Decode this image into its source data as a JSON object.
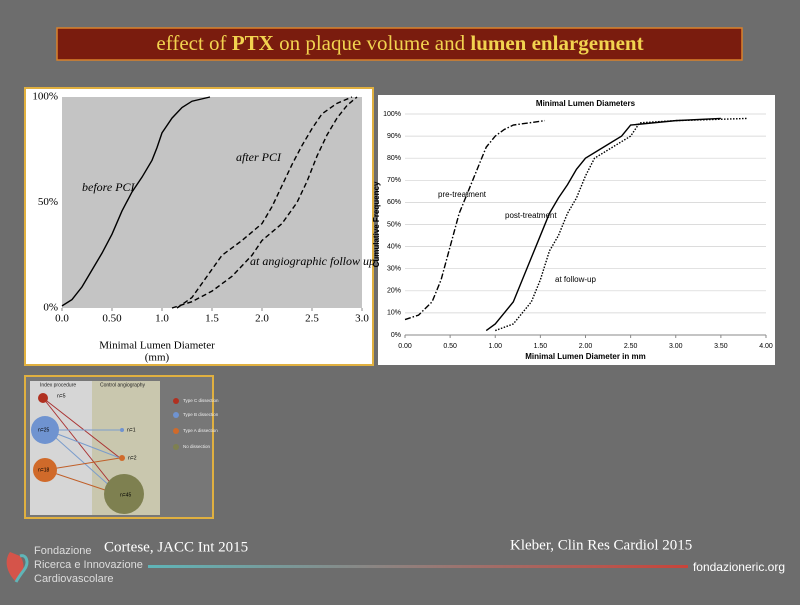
{
  "slide": {
    "title_parts": [
      "effect of ",
      "PTX",
      " on plaque volume and ",
      "lumen enlargement"
    ]
  },
  "chart_data": [
    {
      "type": "line",
      "xlim": [
        0,
        3
      ],
      "ylim": [
        0,
        100
      ],
      "xticks": [
        {
          "value": 0,
          "label": "0.0"
        },
        {
          "value": 0.5,
          "label": "0.50"
        },
        {
          "value": 1,
          "label": "1.0"
        },
        1.5,
        {
          "value": 2,
          "label": "2.0"
        },
        2.5,
        {
          "value": 3,
          "label": "3.0"
        }
      ],
      "yticks": [
        {
          "value": 0,
          "label": "0%"
        },
        {
          "value": 50,
          "label": "50%"
        },
        {
          "value": 100,
          "label": "100%"
        }
      ],
      "xlabel": [
        "Minimal Lumen Diameter",
        "(mm)"
      ],
      "grid": false,
      "series": [
        {
          "name": "before PCI",
          "color": "#000000",
          "dash": "solid",
          "x": [
            0.0,
            0.1,
            0.2,
            0.3,
            0.4,
            0.5,
            0.6,
            0.7,
            0.8,
            0.9,
            0.95,
            1.0,
            1.1,
            1.2,
            1.3,
            1.48
          ],
          "values": [
            1,
            4,
            10,
            18,
            26,
            35,
            46,
            55,
            62,
            70,
            76,
            83,
            90,
            95,
            98,
            100
          ]
        },
        {
          "name": "after PCI",
          "color": "#000000",
          "dash": "dashed",
          "x": [
            1.15,
            1.3,
            1.45,
            1.6,
            1.8,
            2.0,
            2.1,
            2.2,
            2.3,
            2.4,
            2.5,
            2.6,
            2.75,
            2.9
          ],
          "values": [
            0,
            5,
            15,
            25,
            32,
            40,
            48,
            58,
            68,
            77,
            85,
            92,
            97,
            100
          ]
        },
        {
          "name": "at angiographic follow up",
          "color": "#000000",
          "dash": "dashed",
          "x": [
            1.1,
            1.3,
            1.5,
            1.7,
            1.9,
            2.0,
            2.2,
            2.35,
            2.45,
            2.55,
            2.65,
            2.75,
            2.85,
            2.95
          ],
          "values": [
            0,
            3,
            8,
            15,
            25,
            32,
            40,
            50,
            60,
            72,
            82,
            90,
            96,
            100
          ]
        }
      ]
    },
    {
      "type": "line",
      "title": "Minimal Lumen Diameters",
      "xlim": [
        0,
        4
      ],
      "ylim": [
        0,
        100
      ],
      "xticks": [
        {
          "value": 0,
          "label": "0.00"
        },
        {
          "value": 0.5,
          "label": "0.50"
        },
        {
          "value": 1,
          "label": "1.00"
        },
        {
          "value": 1.5,
          "label": "1.50"
        },
        {
          "value": 2,
          "label": "2.00"
        },
        {
          "value": 2.5,
          "label": "2.50"
        },
        {
          "value": 3,
          "label": "3.00"
        },
        {
          "value": 3.5,
          "label": "3.50"
        },
        {
          "value": 4,
          "label": "4.00"
        }
      ],
      "yticks": [
        {
          "value": 0,
          "label": "0%"
        },
        {
          "value": 10,
          "label": "10%"
        },
        {
          "value": 20,
          "label": "20%"
        },
        {
          "value": 30,
          "label": "30%"
        },
        {
          "value": 40,
          "label": "40%"
        },
        {
          "value": 50,
          "label": "50%"
        },
        {
          "value": 60,
          "label": "60%"
        },
        {
          "value": 70,
          "label": "70%"
        },
        {
          "value": 80,
          "label": "80%"
        },
        {
          "value": 90,
          "label": "90%"
        },
        {
          "value": 100,
          "label": "100%"
        }
      ],
      "xlabel": "Minimal Lumen Diameter in mm",
      "ylabel": "Cumulative Frequency",
      "grid": true,
      "series": [
        {
          "name": "pre-treatment",
          "color": "#000000",
          "dash": "dashdot",
          "x": [
            0.0,
            0.15,
            0.3,
            0.4,
            0.5,
            0.6,
            0.7,
            0.8,
            0.9,
            1.0,
            1.1,
            1.2,
            1.55
          ],
          "values": [
            7,
            9,
            15,
            25,
            40,
            55,
            65,
            75,
            85,
            90,
            93,
            95,
            97
          ]
        },
        {
          "name": "post-treatment",
          "color": "#000000",
          "dash": "solid",
          "x": [
            0.9,
            1.0,
            1.1,
            1.2,
            1.3,
            1.4,
            1.5,
            1.6,
            1.7,
            1.8,
            1.9,
            2.0,
            2.2,
            2.4,
            2.5,
            3.0,
            3.5
          ],
          "values": [
            2,
            5,
            10,
            15,
            25,
            35,
            45,
            55,
            62,
            68,
            75,
            80,
            85,
            90,
            95,
            97,
            98
          ]
        },
        {
          "name": "at follow-up",
          "color": "#000000",
          "dash": "dotted",
          "x": [
            1.0,
            1.2,
            1.4,
            1.5,
            1.6,
            1.7,
            1.8,
            1.9,
            2.0,
            2.1,
            2.3,
            2.5,
            2.6,
            3.0,
            3.8
          ],
          "values": [
            2,
            5,
            15,
            25,
            38,
            45,
            55,
            62,
            72,
            80,
            85,
            90,
            96,
            97,
            98
          ]
        }
      ]
    }
  ],
  "diagram": {
    "columns": [
      "Index procedure",
      "Control angiography"
    ],
    "nodes": [
      "n=5",
      "n=25",
      "n=18",
      "n=1",
      "n=2",
      "n=45"
    ],
    "legend": [
      "Type C dissection",
      "Type B dissection",
      "Type A dissection",
      "No dissection"
    ]
  },
  "footer": {
    "left_ref": "Cortese, JACC Int 2015",
    "right_ref": "Kleber, Clin Res Cardiol 2015",
    "logo": [
      "Fondazione",
      "Ricerca e Innovazione",
      "Cardiovascolare"
    ],
    "site": "fondazioneric.org"
  }
}
